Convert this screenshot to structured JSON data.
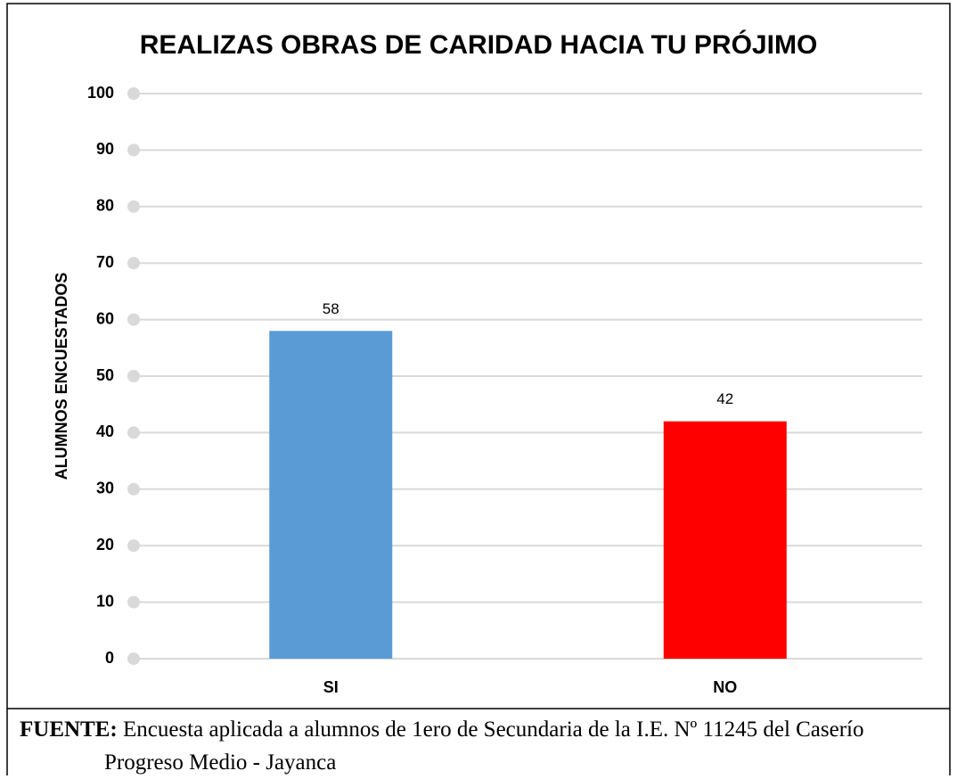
{
  "chart_data": {
    "type": "bar",
    "title": "REALIZAS OBRAS DE CARIDAD HACIA TU PRÓJIMO",
    "y_label": "ALUMNOS ENCUESTADOS",
    "categories": [
      "SI",
      "NO"
    ],
    "values": [
      58,
      42
    ],
    "colors": [
      "#5b9bd5",
      "#ff0000"
    ],
    "ylim": [
      0,
      100
    ],
    "yticks": [
      0,
      10,
      20,
      30,
      40,
      50,
      60,
      70,
      80,
      90,
      100
    ],
    "grid": true
  },
  "caption": {
    "label": "FUENTE:",
    "text": "Encuesta aplicada a alumnos de 1ero de Secundaria de la I.E. Nº 11245 del Caserío Progreso Medio - Jayanca"
  }
}
